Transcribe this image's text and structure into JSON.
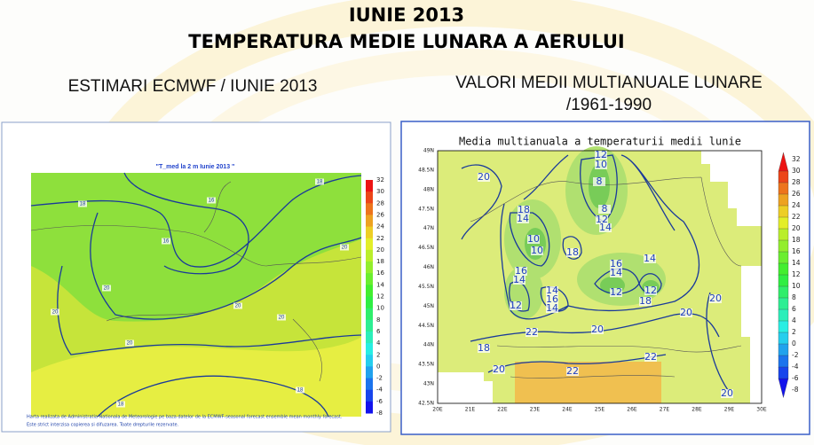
{
  "header": {
    "title": "IUNIE 2013",
    "subtitle": "TEMPERATURA MEDIE LUNARA A AERULUI"
  },
  "left_panel": {
    "heading": "ESTIMARI ECMWF / IUNIE 2013",
    "map_title": "\"T_med la 2 m Iunie 2013 \"",
    "colorbar_labels": [
      32,
      30,
      28,
      26,
      24,
      22,
      20,
      18,
      16,
      14,
      12,
      10,
      8,
      6,
      4,
      2,
      0,
      -2,
      -4,
      -6,
      -8
    ],
    "contour_labels": [
      18,
      16,
      16,
      18,
      20,
      20,
      20,
      20,
      20,
      20,
      18,
      18
    ],
    "footer": [
      "Harta realizata de Administratia Nationala de Meteorologie pe baza datelor de la ECMWF-seasonal forecast ensemble mean monthly forecast.",
      "Este strict interzisa copierea si difuzarea. Toate drepturile rezervate."
    ]
  },
  "right_panel": {
    "heading": [
      "VALORI MEDII MULTIANUALE LUNARE",
      "/1961-1990"
    ],
    "map_title": "Media multianuala a temperaturii medii lunie",
    "lat_labels": [
      "49N",
      "48.5N",
      "48N",
      "47.5N",
      "47N",
      "46.5N",
      "46N",
      "45.5N",
      "45N",
      "44.5N",
      "44N",
      "43.5N",
      "43N",
      "42.5N"
    ],
    "lon_labels": [
      "20E",
      "21E",
      "22E",
      "23E",
      "24E",
      "25E",
      "26E",
      "27E",
      "28E",
      "29E",
      "30E"
    ],
    "colorbar_labels": [
      32,
      30,
      28,
      26,
      24,
      22,
      20,
      18,
      16,
      14,
      12,
      10,
      8,
      6,
      4,
      2,
      0,
      -2,
      -4,
      -6,
      -8
    ],
    "contour_labels": [
      20,
      12,
      10,
      8,
      8,
      12,
      14,
      18,
      14,
      10,
      10,
      18,
      16,
      14,
      12,
      14,
      16,
      14,
      16,
      14,
      12,
      14,
      12,
      18,
      20,
      20,
      22,
      20,
      18,
      20,
      22,
      22,
      20
    ]
  }
}
